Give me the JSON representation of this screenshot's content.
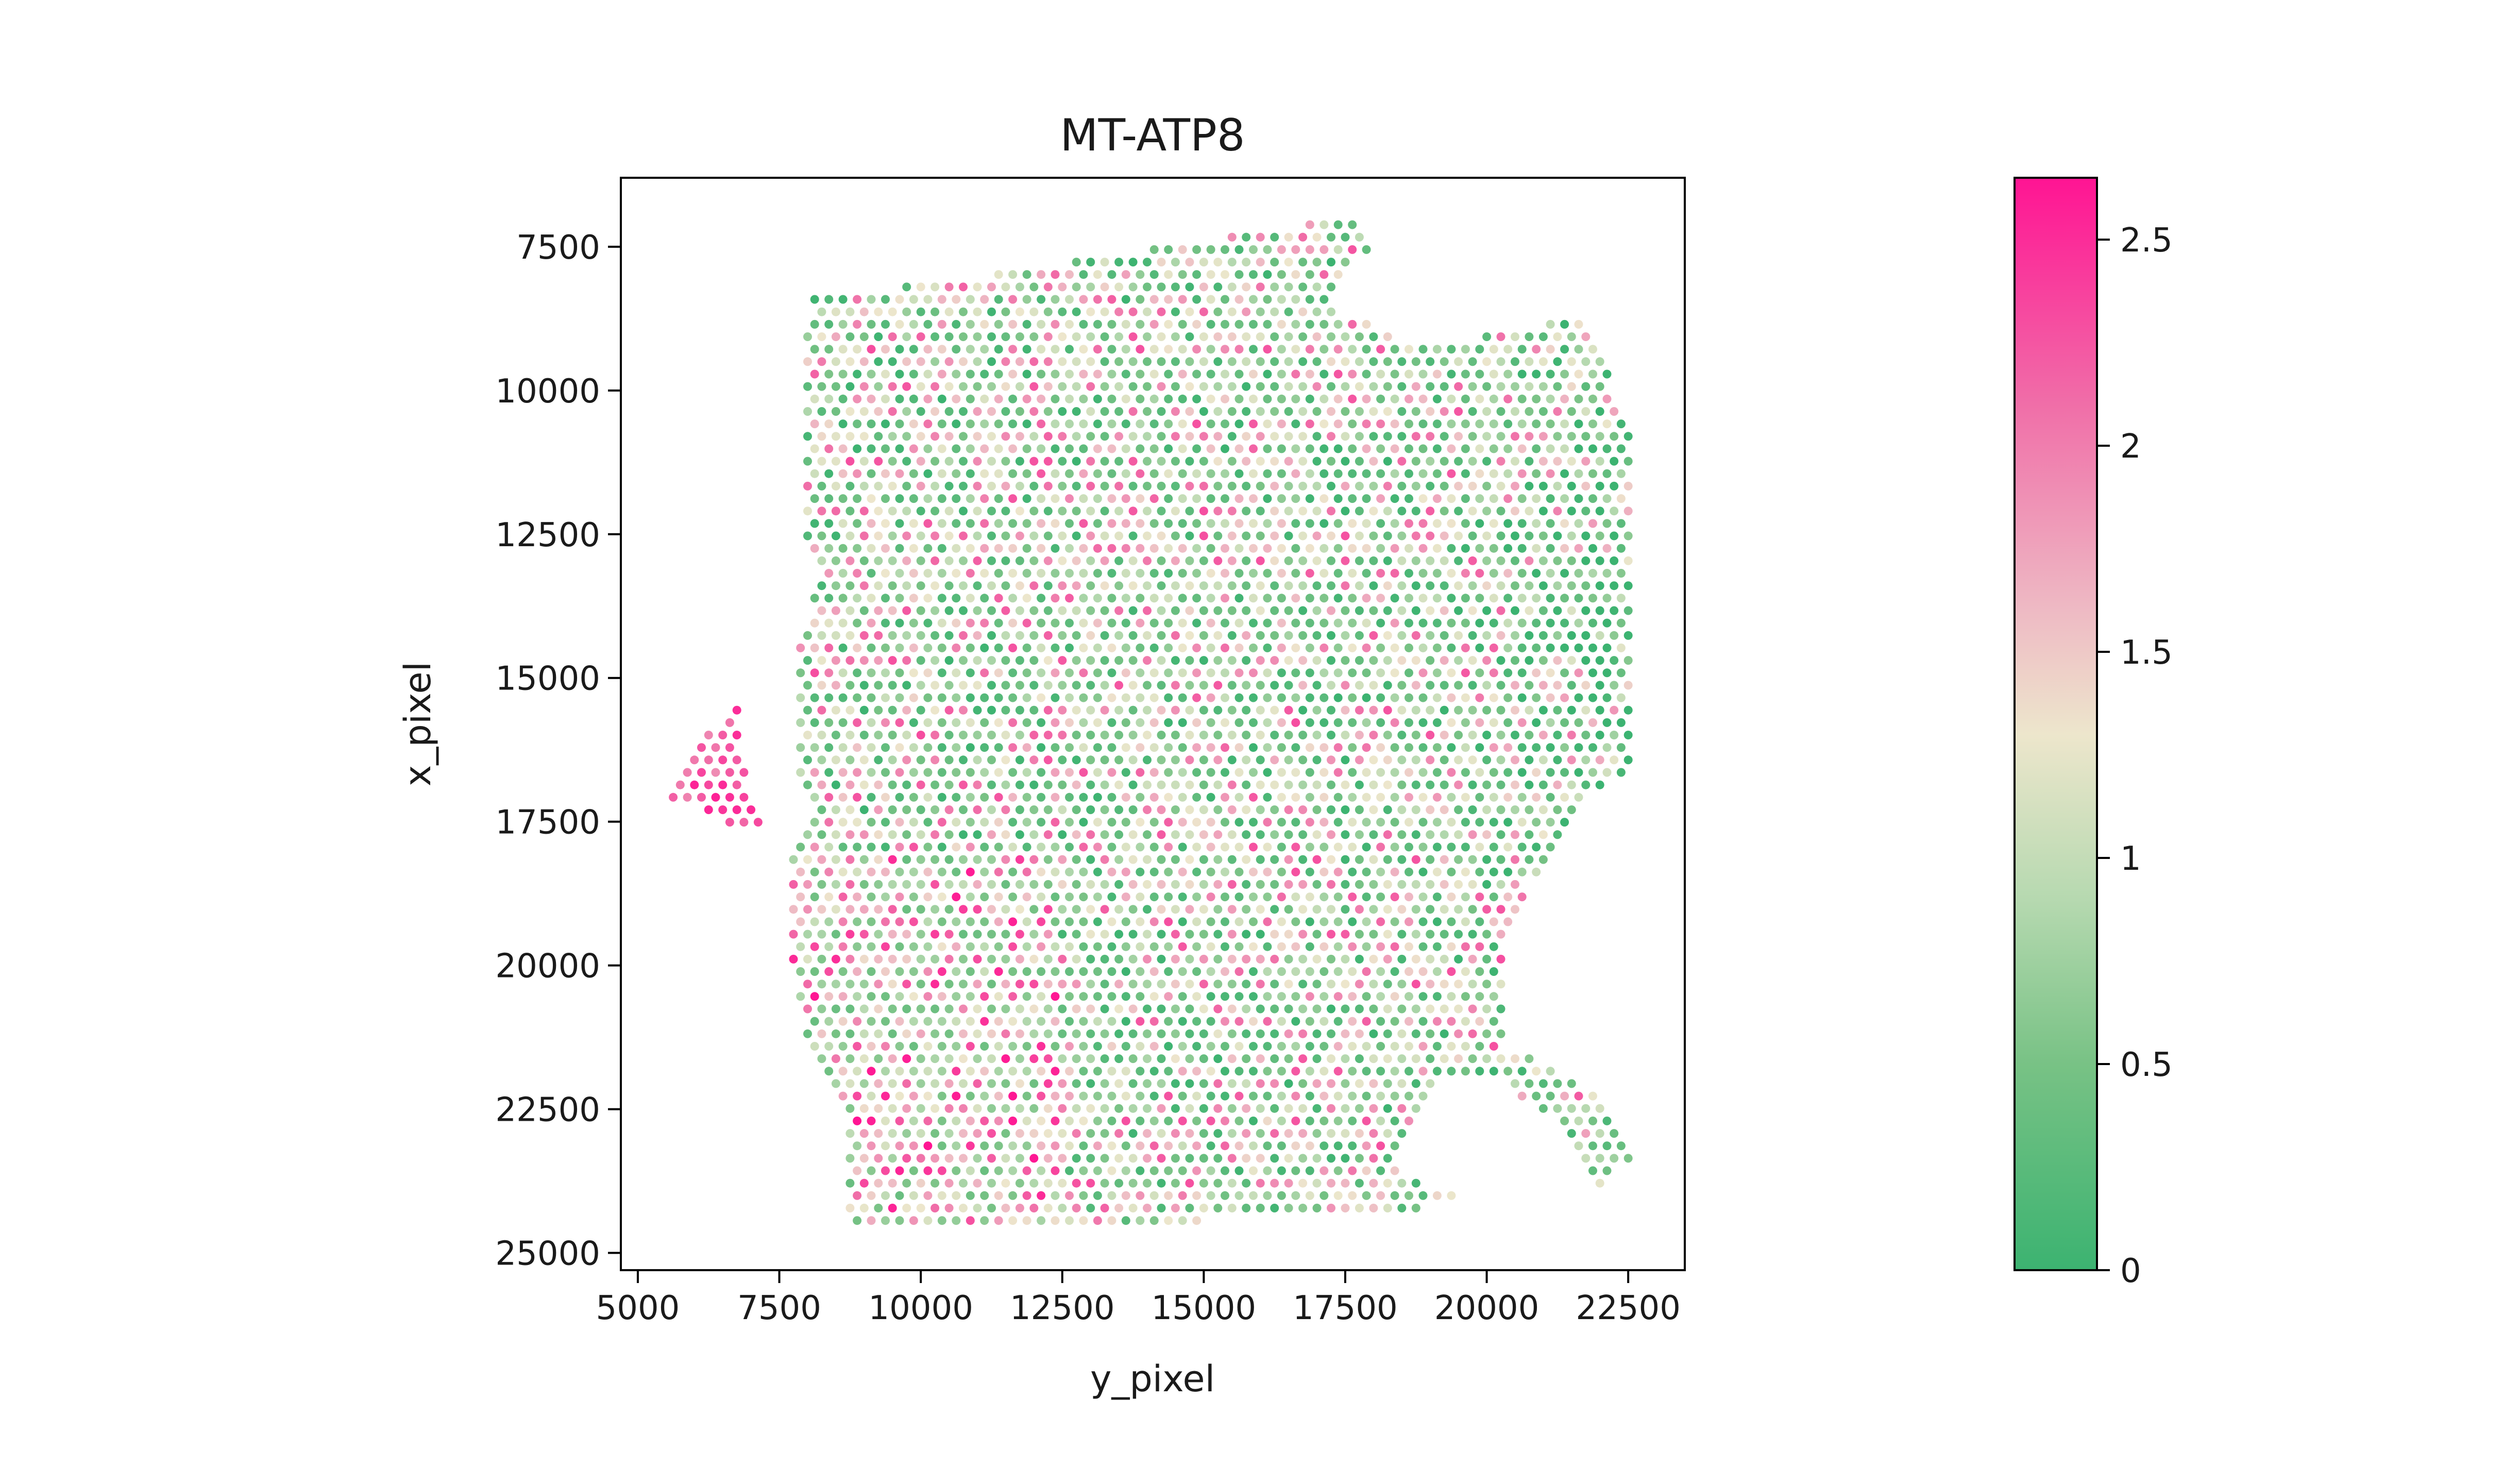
{
  "chart_data": {
    "type": "scatter",
    "title": "MT-ATP8",
    "xlabel": "y_pixel",
    "ylabel": "x_pixel",
    "xlim": [
      4700,
      23500
    ],
    "ylim": [
      25300,
      6300
    ],
    "y_inverted": true,
    "x_ticks": [
      5000,
      7500,
      10000,
      12500,
      15000,
      17500,
      20000,
      22500
    ],
    "x_tick_labels": [
      "5000",
      "7500",
      "10000",
      "12500",
      "15000",
      "17500",
      "20000",
      "22500"
    ],
    "y_ticks": [
      7500,
      10000,
      12500,
      15000,
      17500,
      20000,
      22500,
      25000
    ],
    "y_tick_labels": [
      "7500",
      "10000",
      "12500",
      "15000",
      "17500",
      "20000",
      "22500",
      "25000"
    ],
    "grid": false,
    "spot_spacing": 250,
    "tissue_outline": [
      [
        8100,
        8400
      ],
      [
        10400,
        8100
      ],
      [
        17600,
        7000
      ],
      [
        18000,
        7400
      ],
      [
        17200,
        8500
      ],
      [
        18400,
        9100
      ],
      [
        19600,
        9100
      ],
      [
        20500,
        9000
      ],
      [
        21600,
        8600
      ],
      [
        22600,
        10700
      ],
      [
        22600,
        16600
      ],
      [
        21600,
        17200
      ],
      [
        20800,
        18500
      ],
      [
        20300,
        19400
      ],
      [
        20300,
        21500
      ],
      [
        20800,
        21600
      ],
      [
        22000,
        22300
      ],
      [
        22600,
        23400
      ],
      [
        22000,
        23800
      ],
      [
        21200,
        22700
      ],
      [
        20200,
        22000
      ],
      [
        19200,
        22000
      ],
      [
        18400,
        23500
      ],
      [
        19400,
        24000
      ],
      [
        18500,
        24400
      ],
      [
        8700,
        24500
      ],
      [
        8700,
        22700
      ],
      [
        8000,
        21500
      ],
      [
        7700,
        20000
      ],
      [
        7700,
        18600
      ],
      [
        7600,
        18100
      ],
      [
        8300,
        17200
      ],
      [
        7800,
        16900
      ],
      [
        7800,
        14200
      ],
      [
        8400,
        13100
      ],
      [
        7900,
        12800
      ],
      [
        7900,
        9500
      ]
    ],
    "flap_outline": [
      [
        5600,
        17100
      ],
      [
        6100,
        16100
      ],
      [
        6800,
        15500
      ],
      [
        6900,
        16600
      ],
      [
        7200,
        17700
      ],
      [
        6600,
        17600
      ],
      [
        6000,
        17100
      ]
    ],
    "colorbar": {
      "vmin": 0,
      "vmax": 2.65,
      "ticks": [
        0,
        0.5,
        1,
        1.5,
        2,
        2.5
      ],
      "tick_labels": [
        "0",
        "0.5",
        "1",
        "1.5",
        "2",
        "2.5"
      ],
      "stops": [
        {
          "value": 0,
          "color": "#3cb371"
        },
        {
          "value": 0.5,
          "color": "#78c285"
        },
        {
          "value": 0.9,
          "color": "#b6d9b0"
        },
        {
          "value": 1.3,
          "color": "#ede6cc"
        },
        {
          "value": 1.6,
          "color": "#eebac4"
        },
        {
          "value": 2.1,
          "color": "#f06ea8"
        },
        {
          "value": 2.65,
          "color": "#ff1493"
        }
      ]
    }
  }
}
